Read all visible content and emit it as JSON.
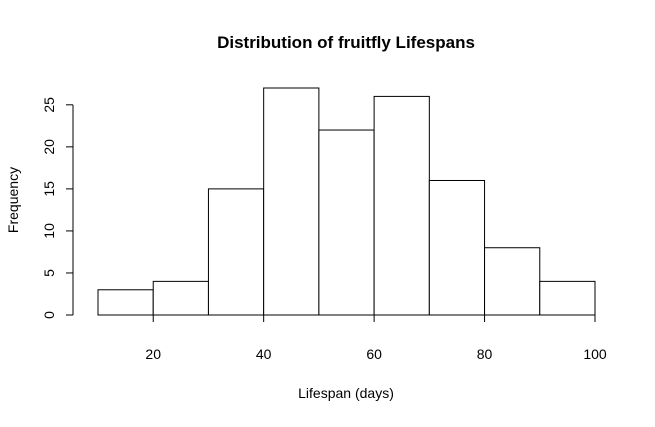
{
  "chart_data": {
    "type": "bar",
    "subtype": "histogram",
    "title": "Distribution of fruitfly Lifespans",
    "xlabel": "Lifespan (days)",
    "ylabel": "Frequency",
    "bins": [
      {
        "start": 10,
        "end": 20,
        "count": 3
      },
      {
        "start": 20,
        "end": 30,
        "count": 4
      },
      {
        "start": 30,
        "end": 40,
        "count": 15
      },
      {
        "start": 40,
        "end": 50,
        "count": 27
      },
      {
        "start": 50,
        "end": 60,
        "count": 22
      },
      {
        "start": 60,
        "end": 70,
        "count": 26
      },
      {
        "start": 70,
        "end": 80,
        "count": 16
      },
      {
        "start": 80,
        "end": 90,
        "count": 8
      },
      {
        "start": 90,
        "end": 100,
        "count": 4
      }
    ],
    "xlim": [
      10,
      100
    ],
    "ylim": [
      0,
      27
    ],
    "x_ticks": [
      20,
      40,
      60,
      80,
      100
    ],
    "y_ticks": [
      0,
      5,
      10,
      15,
      20,
      25
    ],
    "grid": false,
    "legend": "none"
  }
}
